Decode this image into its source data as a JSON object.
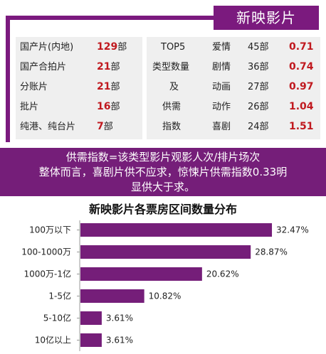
{
  "header": {
    "badge": "新映影片"
  },
  "left_stats": [
    {
      "label": "国产片(内地)",
      "value": "129",
      "unit": "部"
    },
    {
      "label": "国产合拍片",
      "value": "21",
      "unit": "部"
    },
    {
      "label": "分账片",
      "value": "21",
      "unit": "部"
    },
    {
      "label": "批片",
      "value": "16",
      "unit": "部"
    },
    {
      "label": "纯港、纯台片",
      "value": "7",
      "unit": "部"
    }
  ],
  "top5_caption": [
    "TOP5",
    "类型数量",
    "及",
    "供需",
    "指数"
  ],
  "genres": [
    {
      "genre": "爱情",
      "count": "45部",
      "index": "0.71"
    },
    {
      "genre": "剧情",
      "count": "36部",
      "index": "0.74"
    },
    {
      "genre": "动画",
      "count": "27部",
      "index": "0.97"
    },
    {
      "genre": "动作",
      "count": "26部",
      "index": "1.04"
    },
    {
      "genre": "喜剧",
      "count": "24部",
      "index": "1.51"
    }
  ],
  "banner": {
    "line1": "供需指数=该类型影片观影人次/排片场次",
    "line2": "整体而言，喜剧片供不应求，惊悚片供需指数0.33明",
    "line3": "显供大于求。"
  },
  "colors": {
    "accent": "#7b1a7e",
    "value_red": "#c0191f",
    "panel": "#efefef"
  },
  "chart_data": {
    "type": "bar",
    "orientation": "horizontal",
    "title": "新映影片各票房区间数量分布",
    "categories": [
      "100万以下",
      "100-1000万",
      "1000万-1亿",
      "1-5亿",
      "5-10亿",
      "10亿以上"
    ],
    "values": [
      32.47,
      28.87,
      20.62,
      10.82,
      3.61,
      3.61
    ],
    "value_labels": [
      "32.47%",
      "28.87%",
      "20.62%",
      "10.82%",
      "3.61%",
      "3.61%"
    ],
    "xlim": [
      0,
      35
    ],
    "grid": false,
    "bar_color": "#751e79"
  }
}
